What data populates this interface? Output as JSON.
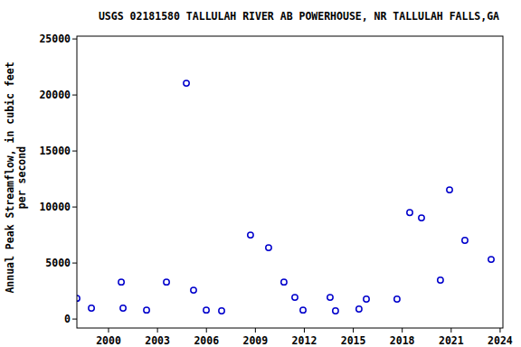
{
  "chart_data": {
    "type": "scatter",
    "title": "USGS 02181580 TALLULAH RIVER AB POWERHOUSE, NR TALLULAH FALLS,GA",
    "y_label": [
      "Annual Peak Streamflow, in cubic feet",
      "per second"
    ],
    "x": [
      1998.06,
      1998.95,
      2000.78,
      2000.89,
      2002.33,
      2003.55,
      2004.77,
      2005.21,
      2005.99,
      2006.93,
      2008.7,
      2009.81,
      2010.75,
      2011.42,
      2011.92,
      2013.58,
      2013.91,
      2015.35,
      2015.8,
      2017.68,
      2018.46,
      2019.18,
      2020.34,
      2020.9,
      2021.84,
      2023.45
    ],
    "values": [
      1850,
      970,
      3300,
      970,
      800,
      3300,
      21050,
      2580,
      800,
      730,
      7500,
      6370,
      3300,
      1935,
      800,
      1935,
      730,
      890,
      1775,
      1775,
      9500,
      9030,
      3470,
      11530,
      7020,
      5320
    ],
    "color": "#0000cc",
    "marker": "circle",
    "xlim": [
      1998.06,
      2024.17
    ],
    "ylim": [
      -800,
      25250
    ],
    "xticks": [
      2000,
      2003,
      2006,
      2009,
      2012,
      2015,
      2018,
      2021,
      2024
    ],
    "yticks": [
      0,
      5000,
      10000,
      15000,
      20000,
      25000
    ],
    "grid": false
  }
}
